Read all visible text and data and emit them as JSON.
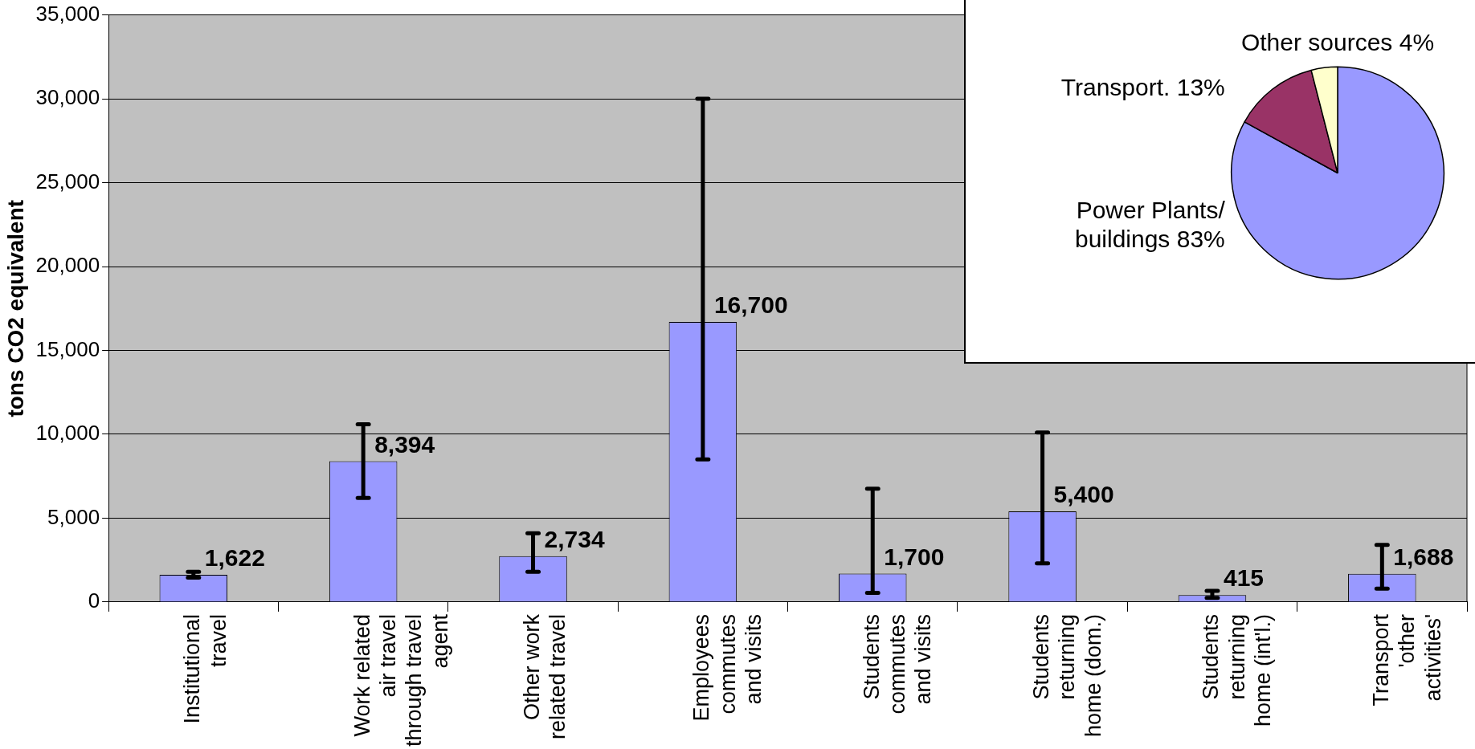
{
  "chart_data": [
    {
      "type": "bar",
      "ylabel": "tons CO2 equivalent",
      "categories": [
        "Institutional\ntravel",
        "Work related\nair travel\nthrough travel\nagent",
        "Other work\nrelated travel",
        "Employees\ncommutes\nand visits",
        "Students\ncommutes\nand visits",
        "Students\nreturning\nhome (dom.)",
        "Students\nreturning\nhome (int'l.)",
        "Transport\n'other\nactivities'"
      ],
      "values": [
        1622,
        8394,
        2734,
        16700,
        1700,
        5400,
        415,
        1688
      ],
      "color": "#9999ff",
      "errors": [
        [
          1450,
          1800
        ],
        [
          6200,
          10600
        ],
        [
          1800,
          4100
        ],
        [
          8500,
          30000
        ],
        [
          550,
          6750
        ],
        [
          2300,
          10100
        ],
        [
          250,
          660
        ],
        [
          800,
          3400
        ]
      ],
      "value_labels": [
        "1,622",
        "8,394",
        "2,734",
        "16,700",
        "1,700",
        "5,400",
        "415",
        "1,688"
      ],
      "ylim": [
        0,
        35000
      ],
      "yticks": [
        {
          "value": 0,
          "label": "0"
        },
        {
          "value": 5000,
          "label": "5,000"
        },
        {
          "value": 10000,
          "label": "10,000"
        },
        {
          "value": 15000,
          "label": "15,000"
        },
        {
          "value": 20000,
          "label": "20,000"
        },
        {
          "value": 25000,
          "label": "25,000"
        },
        {
          "value": 30000,
          "label": "30,000"
        },
        {
          "value": 35000,
          "label": "35,000"
        }
      ],
      "grid": "y",
      "legend": false
    },
    {
      "type": "pie",
      "categories": [
        "Power Plants/ buildings",
        "Transport.",
        "Other sources"
      ],
      "values": [
        83,
        13,
        4
      ],
      "colors": [
        "#9999ff",
        "#993366",
        "#ffffcc"
      ],
      "value_labels": [
        "83%",
        "13%",
        "4%"
      ],
      "legend": false
    }
  ]
}
